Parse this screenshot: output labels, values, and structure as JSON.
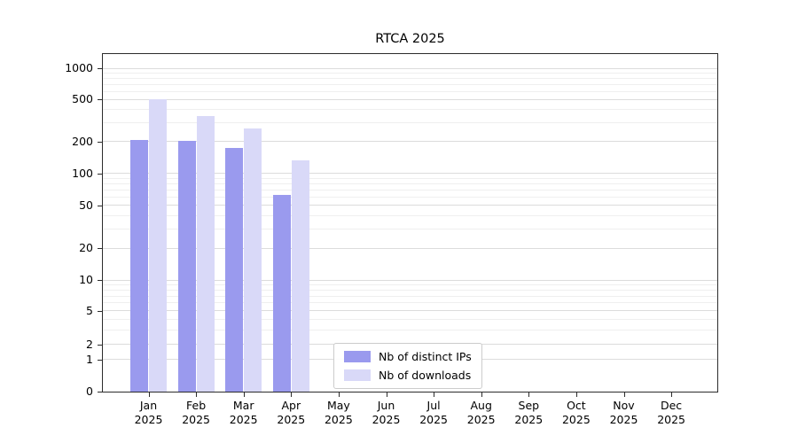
{
  "title": "RTCA 2025",
  "chart_data": {
    "type": "bar",
    "x_year": "2025",
    "categories": [
      "Jan",
      "Feb",
      "Mar",
      "Apr",
      "May",
      "Jun",
      "Jul",
      "Aug",
      "Sep",
      "Oct",
      "Nov",
      "Dec"
    ],
    "series": [
      {
        "name": "Nb of distinct IPs",
        "color": "#9a9aee",
        "values": [
          210,
          205,
          175,
          63,
          0,
          0,
          0,
          0,
          0,
          0,
          0,
          0
        ]
      },
      {
        "name": "Nb of downloads",
        "color": "#d9d9f8",
        "values": [
          510,
          350,
          270,
          135,
          0,
          0,
          0,
          0,
          0,
          0,
          0,
          0
        ]
      }
    ],
    "y_ticks": [
      0,
      1,
      2,
      5,
      10,
      20,
      50,
      100,
      200,
      500,
      1000
    ],
    "y_scale": "symlog",
    "ylim": [
      0,
      1400
    ],
    "grid": true,
    "legend_position": "lower center"
  }
}
